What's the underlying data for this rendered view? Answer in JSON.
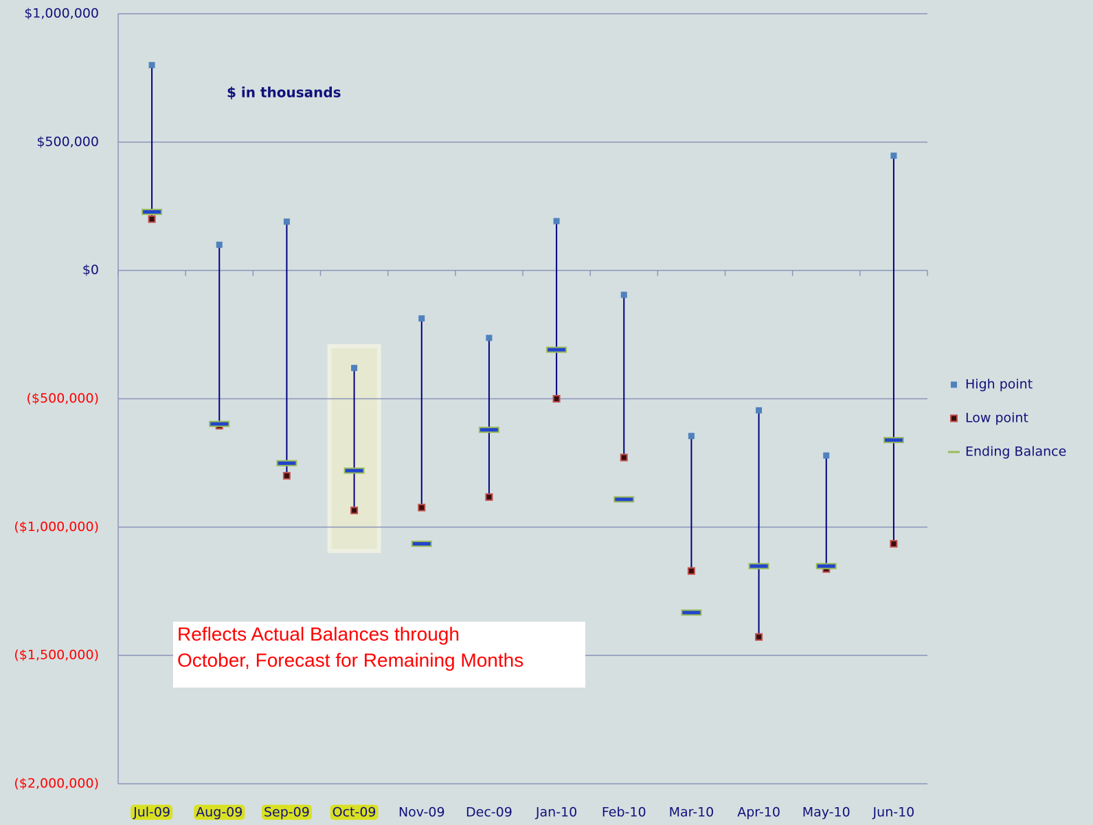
{
  "chart_data": {
    "type": "hilo",
    "annotation": "$ in thousands",
    "note_lines": [
      "Reflects Actual Balances through",
      "October, Forecast for Remaining Months"
    ],
    "categories": [
      "Jul-09",
      "Aug-09",
      "Sep-09",
      "Oct-09",
      "Nov-09",
      "Dec-09",
      "Jan-10",
      "Feb-10",
      "Mar-10",
      "Apr-10",
      "May-10",
      "Jun-10"
    ],
    "highlighted": [
      true,
      true,
      true,
      true,
      false,
      false,
      false,
      false,
      false,
      false,
      false,
      false
    ],
    "highlight_color": "#d9e021",
    "series": [
      {
        "name": "High point",
        "color": "#4f81bd",
        "values": [
          800000,
          100000,
          190000,
          -380000,
          -187000,
          -263000,
          192000,
          -95000,
          -645000,
          -545000,
          -721000,
          447000
        ]
      },
      {
        "name": "Low point",
        "color": "#c0504d",
        "values": [
          200000,
          -605000,
          -800000,
          -935000,
          -924000,
          -883000,
          -500000,
          -729000,
          -1171000,
          -1428000,
          -1163000,
          -1065000
        ]
      },
      {
        "name": "Ending Balance",
        "color": "#9bbb59",
        "values": [
          228000,
          -598000,
          -751000,
          -780000,
          -1065000,
          -621000,
          -309000,
          -892000,
          -1333000,
          -1152000,
          -1152000,
          -661000
        ]
      }
    ],
    "ylim": [
      -2000000,
      1000000
    ],
    "yticks": [
      {
        "value": -2000000,
        "label": "($2,000,000)"
      },
      {
        "value": -1500000,
        "label": "($1,500,000)"
      },
      {
        "value": -1000000,
        "label": "($1,000,000)"
      },
      {
        "value": -500000,
        "label": "($500,000)"
      },
      {
        "value": 0,
        "label": "$0"
      },
      {
        "value": 500000,
        "label": "$500,000"
      },
      {
        "value": 1000000,
        "label": "$1,000,000"
      }
    ],
    "negative_tick_color": "#ff0000",
    "grid": true,
    "legend": "right"
  }
}
